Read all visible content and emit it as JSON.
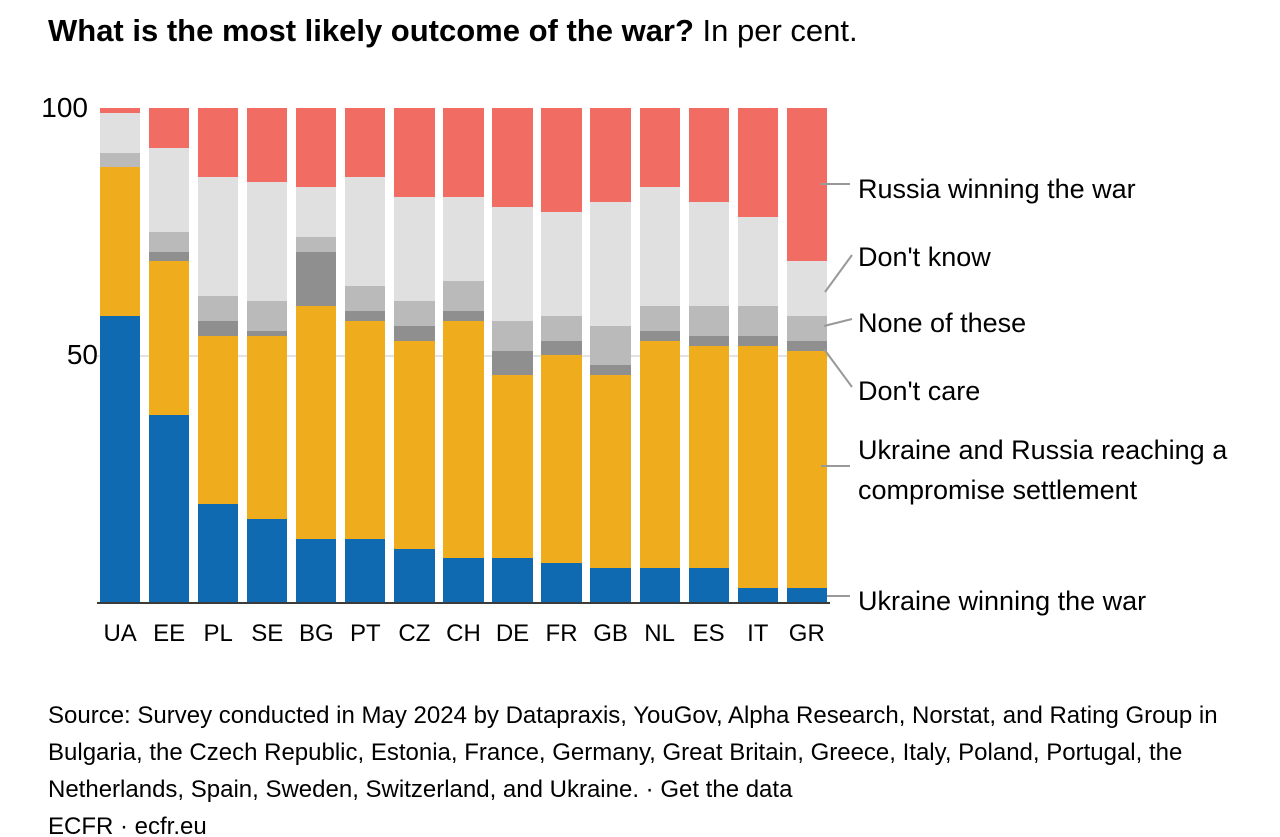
{
  "title": {
    "question": "What is the most likely outcome of the war?",
    "unit_note": " In per cent."
  },
  "y_axis": {
    "tick_top": "100",
    "tick_mid": "50"
  },
  "chart_data": {
    "type": "bar",
    "subtype": "stacked-100-percent",
    "title": "What is the most likely outcome of the war?",
    "unit": "per cent",
    "ylim": [
      0,
      100
    ],
    "yticks": [
      50,
      100
    ],
    "grid": "single line at 50",
    "legend_position": "right",
    "categories": [
      "UA",
      "EE",
      "PL",
      "SE",
      "BG",
      "PT",
      "CZ",
      "CH",
      "DE",
      "FR",
      "GB",
      "NL",
      "ES",
      "IT",
      "GR"
    ],
    "series": [
      {
        "key": "ukraine_winning",
        "name": "Ukraine winning the war",
        "color": "#0F6AB1",
        "values": [
          58,
          38,
          20,
          17,
          13,
          13,
          11,
          9,
          9,
          8,
          7,
          7,
          7,
          3,
          3
        ]
      },
      {
        "key": "compromise",
        "name": "Ukraine and Russia reaching a compromise settlement",
        "color": "#EFAC1C",
        "values": [
          30,
          31,
          34,
          37,
          47,
          44,
          42,
          48,
          37,
          42,
          39,
          46,
          45,
          49,
          48
        ]
      },
      {
        "key": "dont_care",
        "name": "Don't care",
        "color": "#8F8F8F",
        "values": [
          0,
          2,
          3,
          1,
          11,
          2,
          3,
          2,
          5,
          3,
          2,
          2,
          2,
          2,
          2
        ]
      },
      {
        "key": "none_of_these",
        "name": "None of these",
        "color": "#BABABA",
        "values": [
          3,
          4,
          5,
          6,
          3,
          5,
          5,
          6,
          6,
          5,
          8,
          5,
          6,
          6,
          5
        ]
      },
      {
        "key": "dont_know",
        "name": "Don't know",
        "color": "#E0E0E0",
        "values": [
          8,
          17,
          24,
          24,
          10,
          22,
          21,
          17,
          23,
          21,
          25,
          24,
          21,
          18,
          11
        ]
      },
      {
        "key": "russia_winning",
        "name": "Russia winning the war",
        "color": "#F16C62",
        "values": [
          1,
          8,
          14,
          15,
          16,
          14,
          18,
          18,
          20,
          21,
          19,
          16,
          19,
          22,
          31
        ]
      }
    ]
  },
  "legend": {
    "russia": "Russia winning the war",
    "dont_know": "Don't know",
    "none": "None of these",
    "dont_care": "Don't care",
    "compromise": "Ukraine and Russia reaching a compromise settlement",
    "ukraine": "Ukraine winning the war"
  },
  "source": {
    "line1": "Source: Survey conducted in May 2024 by Datapraxis, YouGov, Alpha Research, Norstat, and Rating Group in",
    "line2": "Bulgaria, the Czech Republic, Estonia, France, Germany, Great Britain, Greece, Italy, Poland, Portugal, the",
    "line3_prefix": "Netherlands, Spain, Sweden, Switzerland, and Ukraine. · ",
    "get_data_link": "Get the data",
    "footer": "ECFR · ecfr.eu"
  },
  "colors": {
    "ukraine_blue": "#0F6AB1",
    "compromise_orange": "#EFAC1C",
    "dont_care_dark_gray": "#8F8F8F",
    "none_medium_gray": "#BABABA",
    "dont_know_light_gray": "#E0E0E0",
    "russia_red": "#F16C62",
    "axis": "#3B3B3B",
    "gridline": "#E3E3E3",
    "leader_line": "#999999"
  }
}
